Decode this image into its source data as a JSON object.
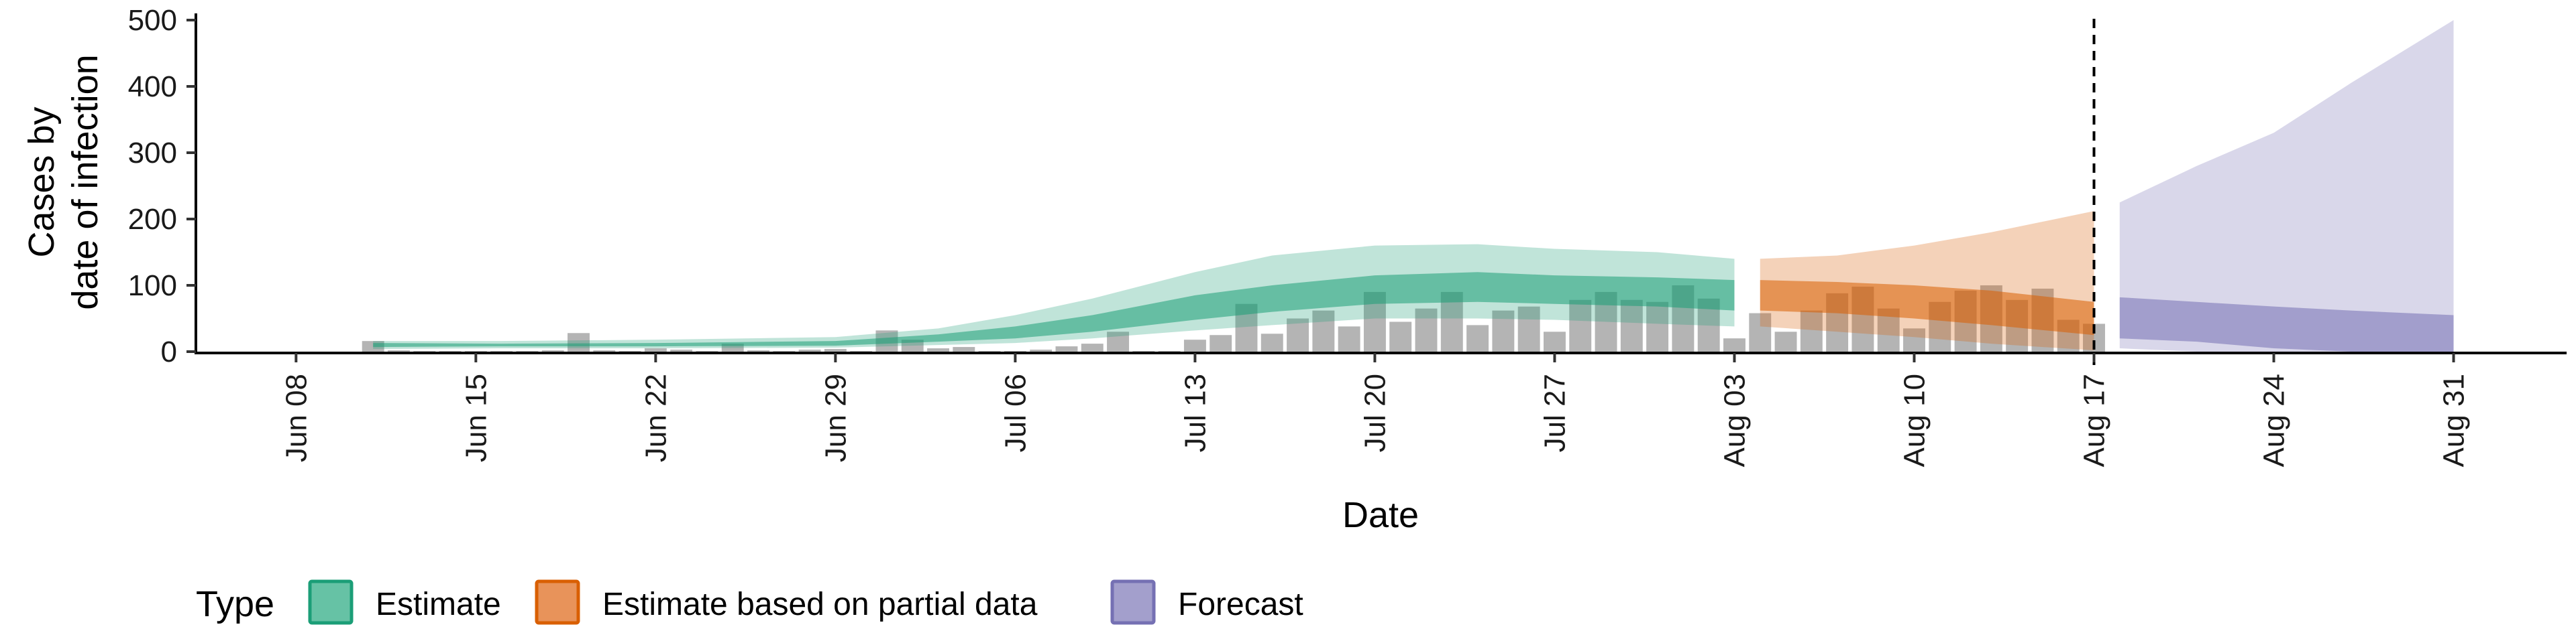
{
  "chart_data": {
    "type": "area",
    "title": "",
    "xlabel": "Date",
    "ylabel_line1": "Cases by",
    "ylabel_line2": "date of infection",
    "ylim": [
      0,
      500
    ],
    "y_ticks": [
      0,
      100,
      200,
      300,
      400,
      500
    ],
    "x_ticks": [
      "Jun 08",
      "Jun 15",
      "Jun 22",
      "Jun 29",
      "Jul 06",
      "Jul 13",
      "Jul 20",
      "Jul 27",
      "Aug 03",
      "Aug 10",
      "Aug 17",
      "Aug 24",
      "Aug 31"
    ],
    "x_tick_days": [
      0,
      7,
      14,
      21,
      28,
      35,
      42,
      49,
      56,
      63,
      70,
      77,
      84
    ],
    "vline_day": 70,
    "legend": {
      "title": "Type",
      "entries": [
        {
          "label": "Estimate",
          "fill": "#66c2a5",
          "stroke": "#1b9e77"
        },
        {
          "label": "Estimate based on partial data",
          "fill": "#e8935a",
          "stroke": "#d95f02"
        },
        {
          "label": "Forecast",
          "fill": "#a39fcc",
          "stroke": "#7570b3"
        }
      ]
    },
    "reported_cases": {
      "days": [
        3,
        4,
        5,
        6,
        7,
        8,
        9,
        10,
        11,
        12,
        13,
        14,
        15,
        16,
        17,
        18,
        19,
        20,
        21,
        22,
        23,
        24,
        25,
        26,
        27,
        28,
        29,
        30,
        31,
        32,
        33,
        34,
        35,
        36,
        37,
        38,
        39,
        40,
        41,
        42,
        43,
        44,
        45,
        46,
        47,
        48,
        49,
        50,
        51,
        52,
        53,
        54,
        55,
        56,
        57,
        58,
        59,
        60,
        61,
        62,
        63,
        64,
        65,
        66,
        67,
        68,
        69,
        70
      ],
      "values": [
        16,
        2,
        1,
        1,
        1,
        1,
        1,
        2,
        28,
        2,
        1,
        5,
        3,
        1,
        12,
        2,
        1,
        3,
        4,
        1,
        32,
        18,
        5,
        7,
        1,
        1,
        3,
        8,
        12,
        30,
        1,
        1,
        18,
        25,
        72,
        27,
        50,
        62,
        38,
        90,
        45,
        65,
        90,
        40,
        62,
        68,
        30,
        78,
        90,
        78,
        75,
        100,
        80,
        20,
        58,
        30,
        62,
        88,
        98,
        65,
        35,
        75,
        92,
        100,
        78,
        95,
        48,
        42
      ]
    },
    "series": [
      {
        "name": "Estimate",
        "color": "#1b9e77",
        "days": [
          3,
          8,
          14,
          21,
          25,
          28,
          31,
          35,
          38,
          42,
          46,
          49,
          53,
          56
        ],
        "median": [
          10,
          10,
          10,
          12,
          20,
          28,
          42,
          65,
          78,
          90,
          95,
          93,
          90,
          85
        ],
        "inner": [
          [
            7,
            13
          ],
          [
            8,
            12
          ],
          [
            8,
            13
          ],
          [
            9,
            16
          ],
          [
            15,
            26
          ],
          [
            20,
            38
          ],
          [
            30,
            55
          ],
          [
            48,
            85
          ],
          [
            60,
            100
          ],
          [
            72,
            115
          ],
          [
            75,
            120
          ],
          [
            72,
            115
          ],
          [
            68,
            112
          ],
          [
            62,
            108
          ]
        ],
        "outer": [
          [
            4,
            16
          ],
          [
            5,
            16
          ],
          [
            5,
            18
          ],
          [
            6,
            22
          ],
          [
            10,
            35
          ],
          [
            13,
            55
          ],
          [
            20,
            80
          ],
          [
            32,
            120
          ],
          [
            40,
            145
          ],
          [
            50,
            160
          ],
          [
            50,
            162
          ],
          [
            48,
            155
          ],
          [
            42,
            150
          ],
          [
            38,
            140
          ]
        ]
      },
      {
        "name": "Estimate based on partial data",
        "color": "#d95f02",
        "days": [
          57,
          60,
          63,
          66,
          70
        ],
        "median": [
          85,
          82,
          75,
          65,
          45
        ],
        "inner": [
          [
            62,
            108
          ],
          [
            58,
            105
          ],
          [
            50,
            100
          ],
          [
            40,
            92
          ],
          [
            25,
            75
          ]
        ],
        "outer": [
          [
            38,
            140
          ],
          [
            30,
            145
          ],
          [
            22,
            160
          ],
          [
            12,
            180
          ],
          [
            2,
            212
          ]
        ]
      },
      {
        "name": "Forecast",
        "color": "#7570b3",
        "days": [
          71,
          74,
          77,
          80,
          84
        ],
        "median": [
          50,
          45,
          40,
          38,
          35
        ],
        "inner": [
          [
            20,
            82
          ],
          [
            15,
            75
          ],
          [
            5,
            68
          ],
          [
            0,
            62
          ],
          [
            0,
            55
          ]
        ],
        "outer": [
          [
            5,
            225
          ],
          [
            0,
            280
          ],
          [
            0,
            330
          ],
          [
            0,
            405
          ],
          [
            0,
            500
          ]
        ]
      }
    ]
  }
}
